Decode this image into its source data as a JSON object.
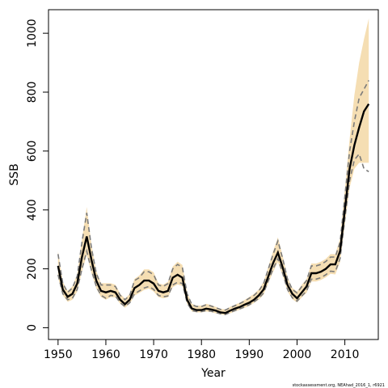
{
  "chart_data": {
    "type": "line",
    "xlabel": "Year",
    "ylabel": "SSB",
    "xlim": [
      1948,
      2017
    ],
    "ylim": [
      -40,
      1080
    ],
    "xticks": [
      1950,
      1960,
      1970,
      1980,
      1990,
      2000,
      2010
    ],
    "yticks": [
      0,
      200,
      400,
      600,
      800,
      1000
    ],
    "grid": false,
    "colors": {
      "band": "#f5deb3",
      "median": "#000000",
      "dashed": "#7a7a7a"
    },
    "x": [
      1950,
      1951,
      1952,
      1953,
      1954,
      1955,
      1956,
      1957,
      1958,
      1959,
      1960,
      1961,
      1962,
      1963,
      1964,
      1965,
      1966,
      1967,
      1968,
      1969,
      1970,
      1971,
      1972,
      1973,
      1974,
      1975,
      1976,
      1977,
      1978,
      1979,
      1980,
      1981,
      1982,
      1983,
      1984,
      1985,
      1986,
      1987,
      1988,
      1989,
      1990,
      1991,
      1992,
      1993,
      1994,
      1995,
      1996,
      1997,
      1998,
      1999,
      2000,
      2001,
      2002,
      2003,
      2004,
      2005,
      2006,
      2007,
      2008,
      2009,
      2010,
      2011,
      2012,
      2013,
      2014,
      2015
    ],
    "series": [
      {
        "role": "median",
        "values": [
          210,
          130,
          105,
          115,
          150,
          240,
          310,
          230,
          160,
          125,
          120,
          125,
          120,
          95,
          80,
          95,
          135,
          145,
          160,
          160,
          150,
          125,
          120,
          125,
          170,
          180,
          170,
          95,
          65,
          60,
          60,
          65,
          62,
          58,
          52,
          50,
          58,
          65,
          70,
          78,
          85,
          95,
          110,
          130,
          175,
          220,
          255,
          205,
          145,
          115,
          100,
          120,
          140,
          185,
          185,
          190,
          200,
          215,
          215,
          260,
          400,
          540,
          620,
          680,
          735,
          760
        ]
      },
      {
        "role": "lower-dashed",
        "values": [
          180,
          115,
          95,
          100,
          130,
          200,
          260,
          195,
          140,
          110,
          100,
          110,
          108,
          85,
          72,
          85,
          115,
          125,
          135,
          140,
          130,
          110,
          105,
          108,
          145,
          155,
          150,
          85,
          58,
          55,
          55,
          58,
          56,
          52,
          47,
          45,
          52,
          58,
          64,
          70,
          78,
          88,
          100,
          118,
          160,
          200,
          235,
          185,
          130,
          102,
          90,
          108,
          125,
          165,
          165,
          170,
          180,
          192,
          190,
          235,
          370,
          500,
          570,
          590,
          540,
          530
        ]
      },
      {
        "role": "upper-dashed",
        "values": [
          250,
          150,
          120,
          135,
          175,
          290,
          390,
          270,
          185,
          145,
          145,
          145,
          140,
          110,
          95,
          110,
          160,
          170,
          190,
          190,
          180,
          145,
          140,
          150,
          200,
          215,
          205,
          115,
          78,
          72,
          72,
          78,
          74,
          68,
          62,
          60,
          68,
          75,
          82,
          90,
          100,
          110,
          125,
          150,
          200,
          250,
          295,
          235,
          165,
          130,
          118,
          140,
          160,
          210,
          210,
          215,
          225,
          240,
          240,
          290,
          445,
          600,
          700,
          780,
          810,
          840
        ]
      },
      {
        "role": "band-lower",
        "values": [
          170,
          110,
          88,
          95,
          123,
          190,
          248,
          185,
          133,
          104,
          95,
          104,
          103,
          81,
          68,
          81,
          109,
          118,
          128,
          133,
          123,
          104,
          100,
          103,
          138,
          147,
          142,
          81,
          55,
          52,
          52,
          55,
          53,
          49,
          45,
          43,
          49,
          55,
          61,
          67,
          74,
          84,
          95,
          112,
          152,
          190,
          223,
          176,
          124,
          97,
          86,
          103,
          119,
          157,
          157,
          162,
          171,
          183,
          181,
          223,
          350,
          475,
          540,
          560,
          560,
          560
        ]
      },
      {
        "role": "band-upper",
        "values": [
          260,
          156,
          125,
          141,
          182,
          300,
          410,
          280,
          193,
          151,
          151,
          151,
          146,
          115,
          99,
          115,
          166,
          177,
          198,
          198,
          188,
          151,
          146,
          156,
          208,
          224,
          213,
          120,
          81,
          75,
          75,
          81,
          77,
          71,
          64,
          62,
          71,
          78,
          85,
          94,
          104,
          115,
          130,
          156,
          208,
          260,
          307,
          244,
          172,
          135,
          123,
          146,
          166,
          218,
          218,
          224,
          234,
          250,
          250,
          302,
          470,
          640,
          790,
          900,
          980,
          1050
        ]
      }
    ]
  },
  "credit_text": "stockassessment.org, NEAhad_2016_1, r6921"
}
